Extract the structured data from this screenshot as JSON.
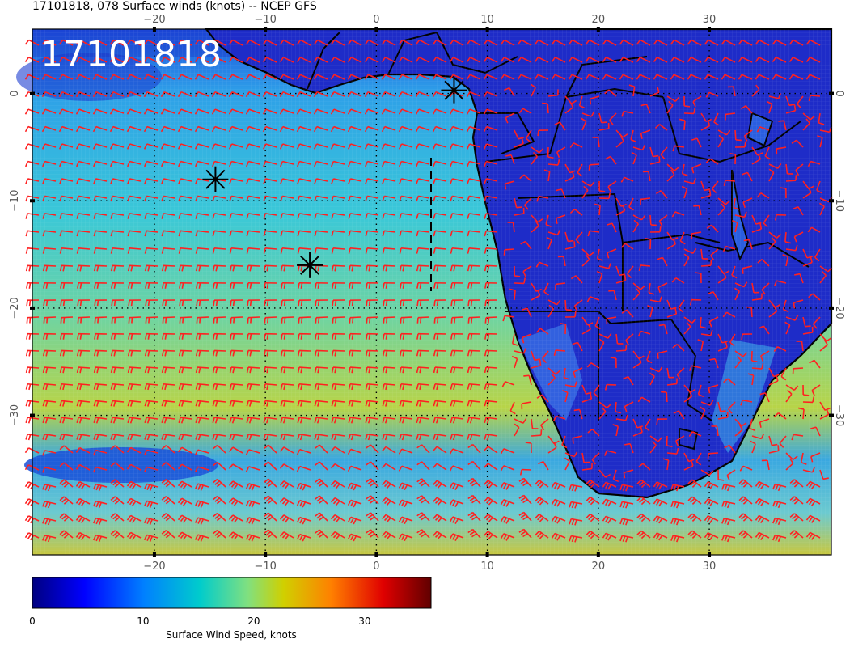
{
  "title": "17101818, 078 Surface winds (knots) -- NCEP GFS",
  "stamp": "17101818",
  "map": {
    "region": "South Atlantic / Southern Africa",
    "lon_range": [
      -31,
      41
    ],
    "lat_range": [
      6,
      -43
    ],
    "lon_ticks": [
      "−20",
      "−10",
      "0",
      "10",
      "20",
      "30"
    ],
    "lat_ticks": [
      "0",
      "−10",
      "−20",
      "−30"
    ],
    "barb_color": "#ff2020",
    "marker_positions_lonlat": [
      [
        7,
        0.3
      ],
      [
        -14.5,
        -8
      ],
      [
        -6,
        -16
      ]
    ]
  },
  "colorbar": {
    "label": "Surface Wind Speed, knots",
    "ticks": [
      "0",
      "10",
      "20",
      "30"
    ],
    "range": [
      0,
      36
    ],
    "colors": [
      "#00007f",
      "#0000ff",
      "#007fff",
      "#00d0d0",
      "#7fff7f",
      "#d7d700",
      "#ff7f00",
      "#ff0000",
      "#7f0000"
    ]
  }
}
